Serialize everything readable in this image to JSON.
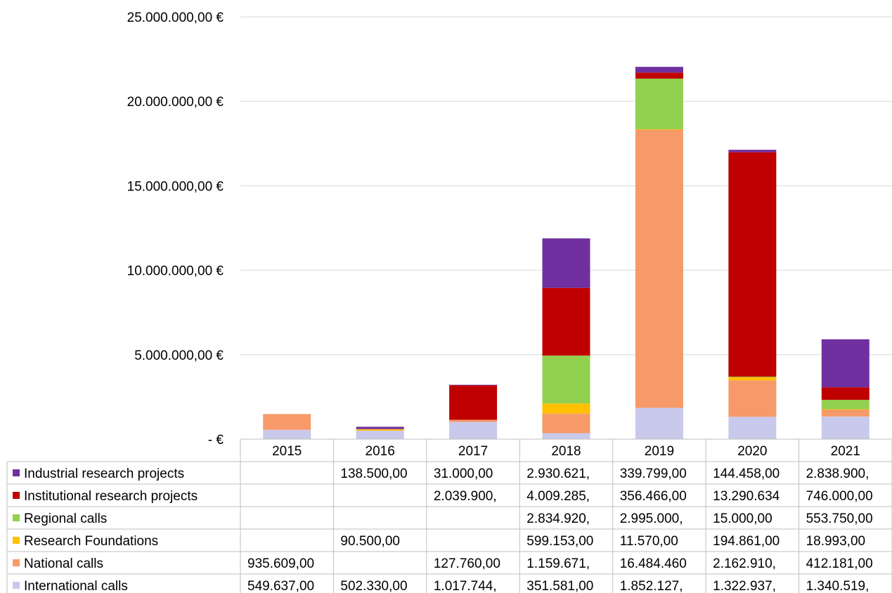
{
  "chart_data": {
    "type": "bar",
    "stacked": true,
    "categories": [
      "2015",
      "2016",
      "2017",
      "2018",
      "2019",
      "2020",
      "2021"
    ],
    "ylim": [
      0,
      25000000
    ],
    "yticks": [
      0,
      5000000,
      10000000,
      15000000,
      20000000,
      25000000
    ],
    "ytick_labels": [
      "-   €",
      "5.000.000,00 €",
      "10.000.000,00 €",
      "15.000.000,00 €",
      "20.000.000,00 €",
      "25.000.000,00 €"
    ],
    "grid": true,
    "legend": "data-table",
    "series": [
      {
        "name": "International calls",
        "color": "#c9c9ec",
        "values": [
          549637,
          502330,
          1017744,
          351581,
          1852127,
          1322937,
          1340519
        ],
        "labels": [
          "549.637,00",
          "502.330,00",
          "1.017.744,",
          "351.581,00",
          "1.852.127,",
          "1.322.937,",
          "1.340.519,"
        ]
      },
      {
        "name": "National calls",
        "color": "#f79a6a",
        "values": [
          935609,
          0,
          127760,
          1159671,
          16484460,
          2162910,
          412181
        ],
        "labels": [
          "935.609,00",
          "",
          "127.760,00",
          "1.159.671,",
          "16.484.460",
          "2.162.910,",
          "412.181,00"
        ]
      },
      {
        "name": "Research Foundations",
        "color": "#ffc000",
        "values": [
          0,
          90500,
          0,
          599153,
          11570,
          194861,
          18993
        ],
        "labels": [
          "",
          "90.500,00",
          "",
          "599.153,00",
          "11.570,00",
          "194.861,00",
          "18.993,00"
        ]
      },
      {
        "name": "Regional calls",
        "color": "#92d050",
        "values": [
          0,
          0,
          0,
          2834920,
          2995000,
          15000,
          553750
        ],
        "labels": [
          "",
          "",
          "",
          "2.834.920,",
          "2.995.000,",
          "15.000,00",
          "553.750,00"
        ]
      },
      {
        "name": "Institutional research projects",
        "color": "#c00000",
        "values": [
          0,
          0,
          2039900,
          4009285,
          356466,
          13290634,
          746000
        ],
        "labels": [
          "",
          "",
          "2.039.900,",
          "4.009.285,",
          "356.466,00",
          "13.290.634",
          "746.000,00"
        ]
      },
      {
        "name": "Industrial research projects",
        "color": "#7030a0",
        "values": [
          0,
          138500,
          31000,
          2930621,
          339799,
          144458,
          2838900
        ],
        "labels": [
          "",
          "138.500,00",
          "31.000,00",
          "2.930.621,",
          "339.799,00",
          "144.458,00",
          "2.838.900,"
        ]
      }
    ]
  }
}
